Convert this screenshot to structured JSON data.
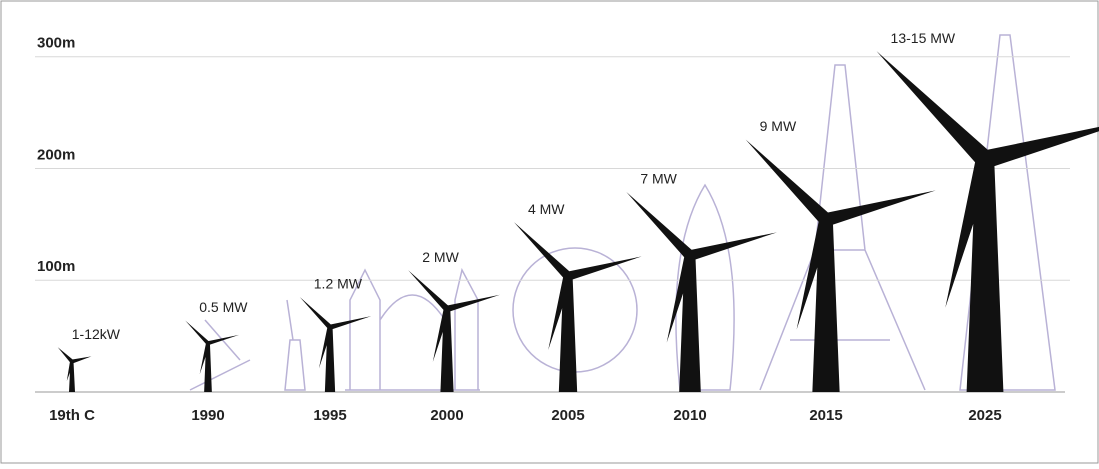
{
  "chart_data": {
    "type": "turbine",
    "categories": [
      "19th C",
      "1990",
      "1995",
      "2000",
      "2005",
      "2010",
      "2015",
      "2025"
    ],
    "values": [
      40,
      64,
      85,
      109,
      152,
      179,
      226,
      305
    ],
    "power_labels": [
      "1-12kW",
      "0.5 MW",
      "1.2 MW",
      "2 MW",
      "4 MW",
      "7 MW",
      "9 MW",
      "13-15 MW"
    ],
    "color": "#111111",
    "ylim": [
      0,
      315
    ],
    "yticks": [
      {
        "value": 100,
        "label": "100m"
      },
      {
        "value": 200,
        "label": "200m"
      },
      {
        "value": 300,
        "label": "300m"
      }
    ],
    "grid": true
  }
}
